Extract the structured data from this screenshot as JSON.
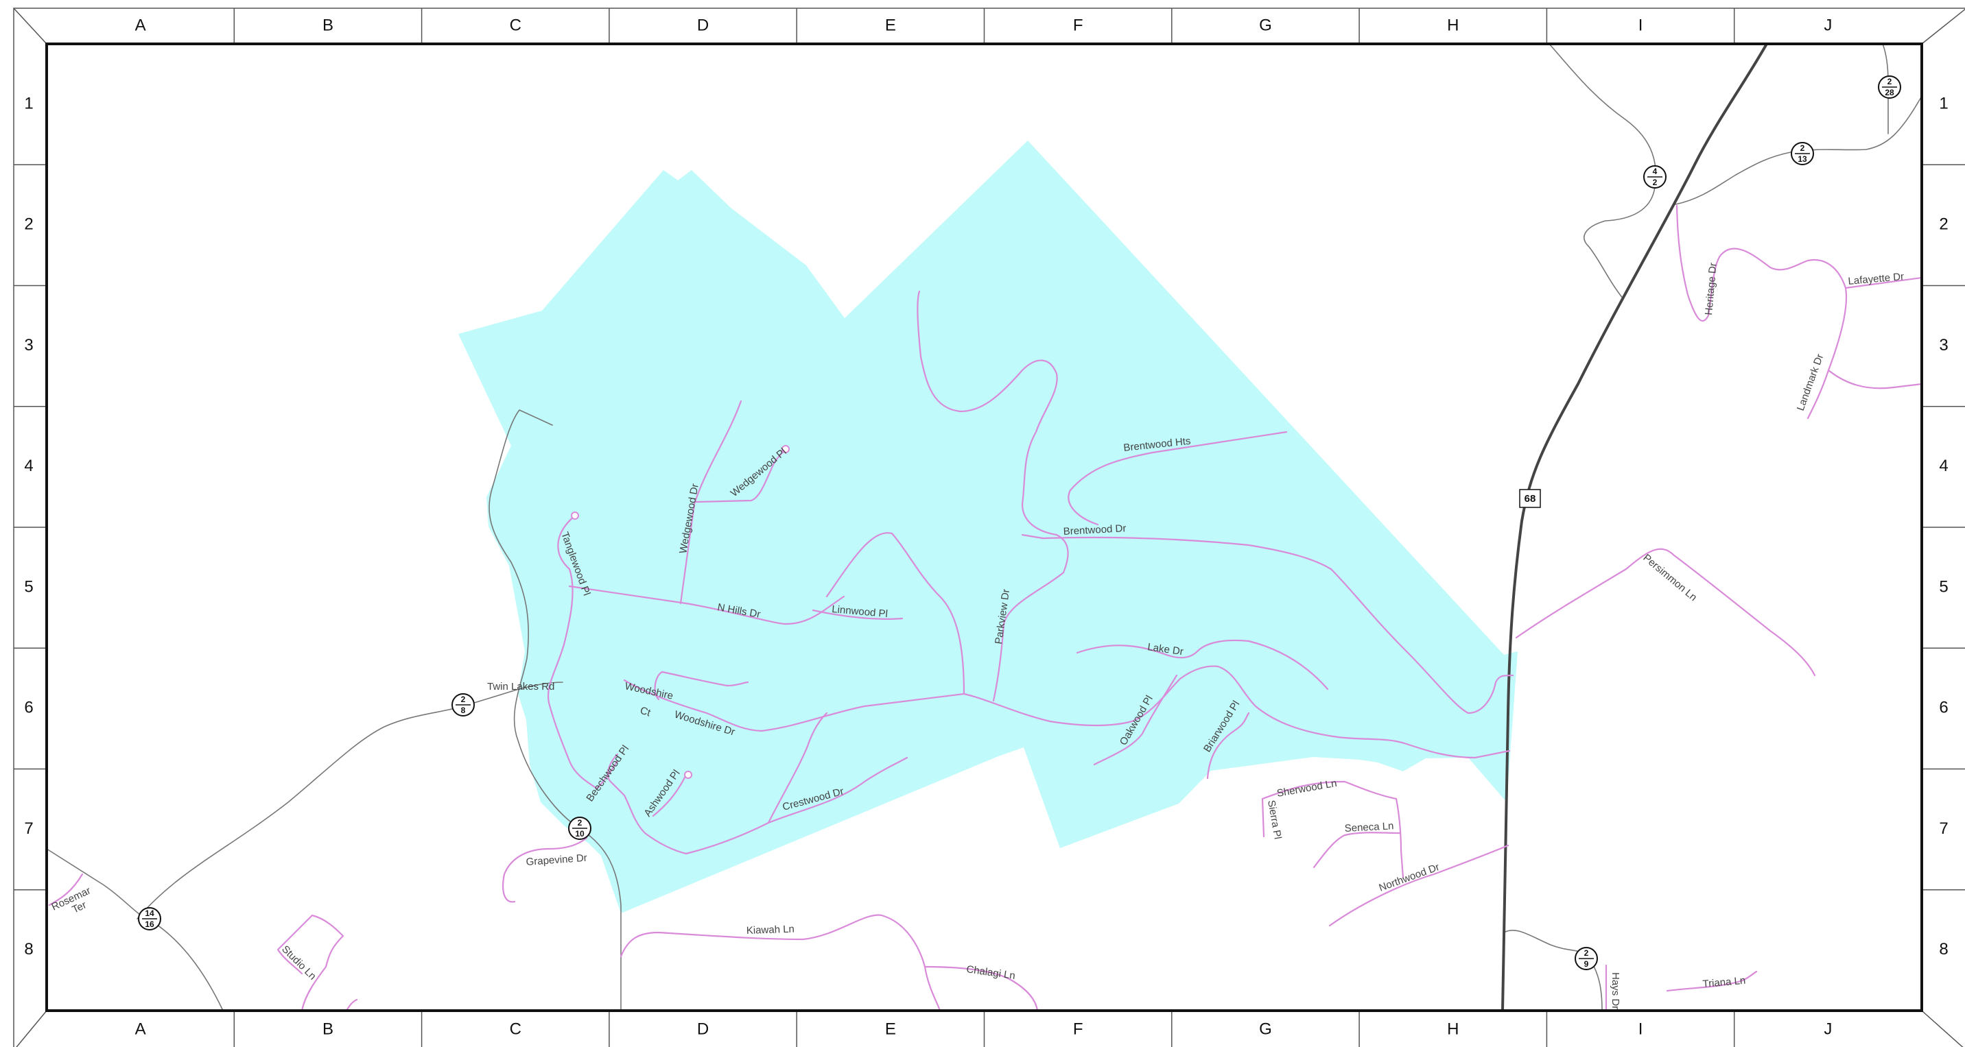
{
  "grid": {
    "columns": [
      "A",
      "B",
      "C",
      "D",
      "E",
      "F",
      "G",
      "H",
      "I",
      "J"
    ],
    "rows": [
      "1",
      "2",
      "3",
      "4",
      "5",
      "6",
      "7",
      "8"
    ]
  },
  "colors": {
    "area_fill": "#c0fafa",
    "street": "#d98ad9",
    "road": "#777777",
    "highway": "#444444",
    "frame": "#555555"
  },
  "streets": {
    "brentwood_hts": "Brentwood Hts",
    "brentwood_dr": "Brentwood Dr",
    "wedgewood_pl": "Wedgewood Pl",
    "wedgewood_dr": "Wedgewood Dr",
    "tanglewood_pl": "Tanglewood Pl",
    "n_hills_dr": "N Hills Dr",
    "linnwood_pl": "Linnwood Pl",
    "parkview_dr": "Parkview Dr",
    "lake_dr": "Lake Dr",
    "twin_lakes_rd": "Twin Lakes Rd",
    "woodshire_ct_1": "Woodshire",
    "woodshire_ct_2": "Ct",
    "woodshire_dr": "Woodshire Dr",
    "oakwood_pl": "Oakwood Pl",
    "briarwood_pl": "Briarwood Pl",
    "beechwood_pl": "Beechwood Pl",
    "ashwood_pl": "Ashwood Pl",
    "crestwood_dr": "Crestwood Dr",
    "sherwood_ln": "Sherwood Ln",
    "sierra_pl": "Sierra Pl",
    "seneca_ln": "Seneca Ln",
    "northwood_dr": "Northwood Dr",
    "grapevine_dr": "Grapevine Dr",
    "kiawah_ln": "Kiawah Ln",
    "chalagi_ln": "Chalagi Ln",
    "rosemar_ter_1": "Rosemar",
    "rosemar_ter_2": "Ter",
    "studio_ln": "Studio Ln",
    "heritage_dr": "Heritage Dr",
    "lafayette_dr": "Lafayette Dr",
    "landmark_dr": "Landmark Dr",
    "persimmon_ln": "Persimmon Ln",
    "hays_dr": "Hays Dr",
    "triana_ln": "Triana Ln"
  },
  "route_markers": [
    {
      "id": "2-8",
      "top": "2",
      "bottom": "8"
    },
    {
      "id": "2-10",
      "top": "2",
      "bottom": "10"
    },
    {
      "id": "14-16",
      "top": "14",
      "bottom": "16"
    },
    {
      "id": "4-2",
      "top": "4",
      "bottom": "2"
    },
    {
      "id": "2-13",
      "top": "2",
      "bottom": "13"
    },
    {
      "id": "2-28",
      "top": "2",
      "bottom": "28"
    },
    {
      "id": "2-9",
      "top": "2",
      "bottom": "9"
    }
  ],
  "highway_shield": "68"
}
